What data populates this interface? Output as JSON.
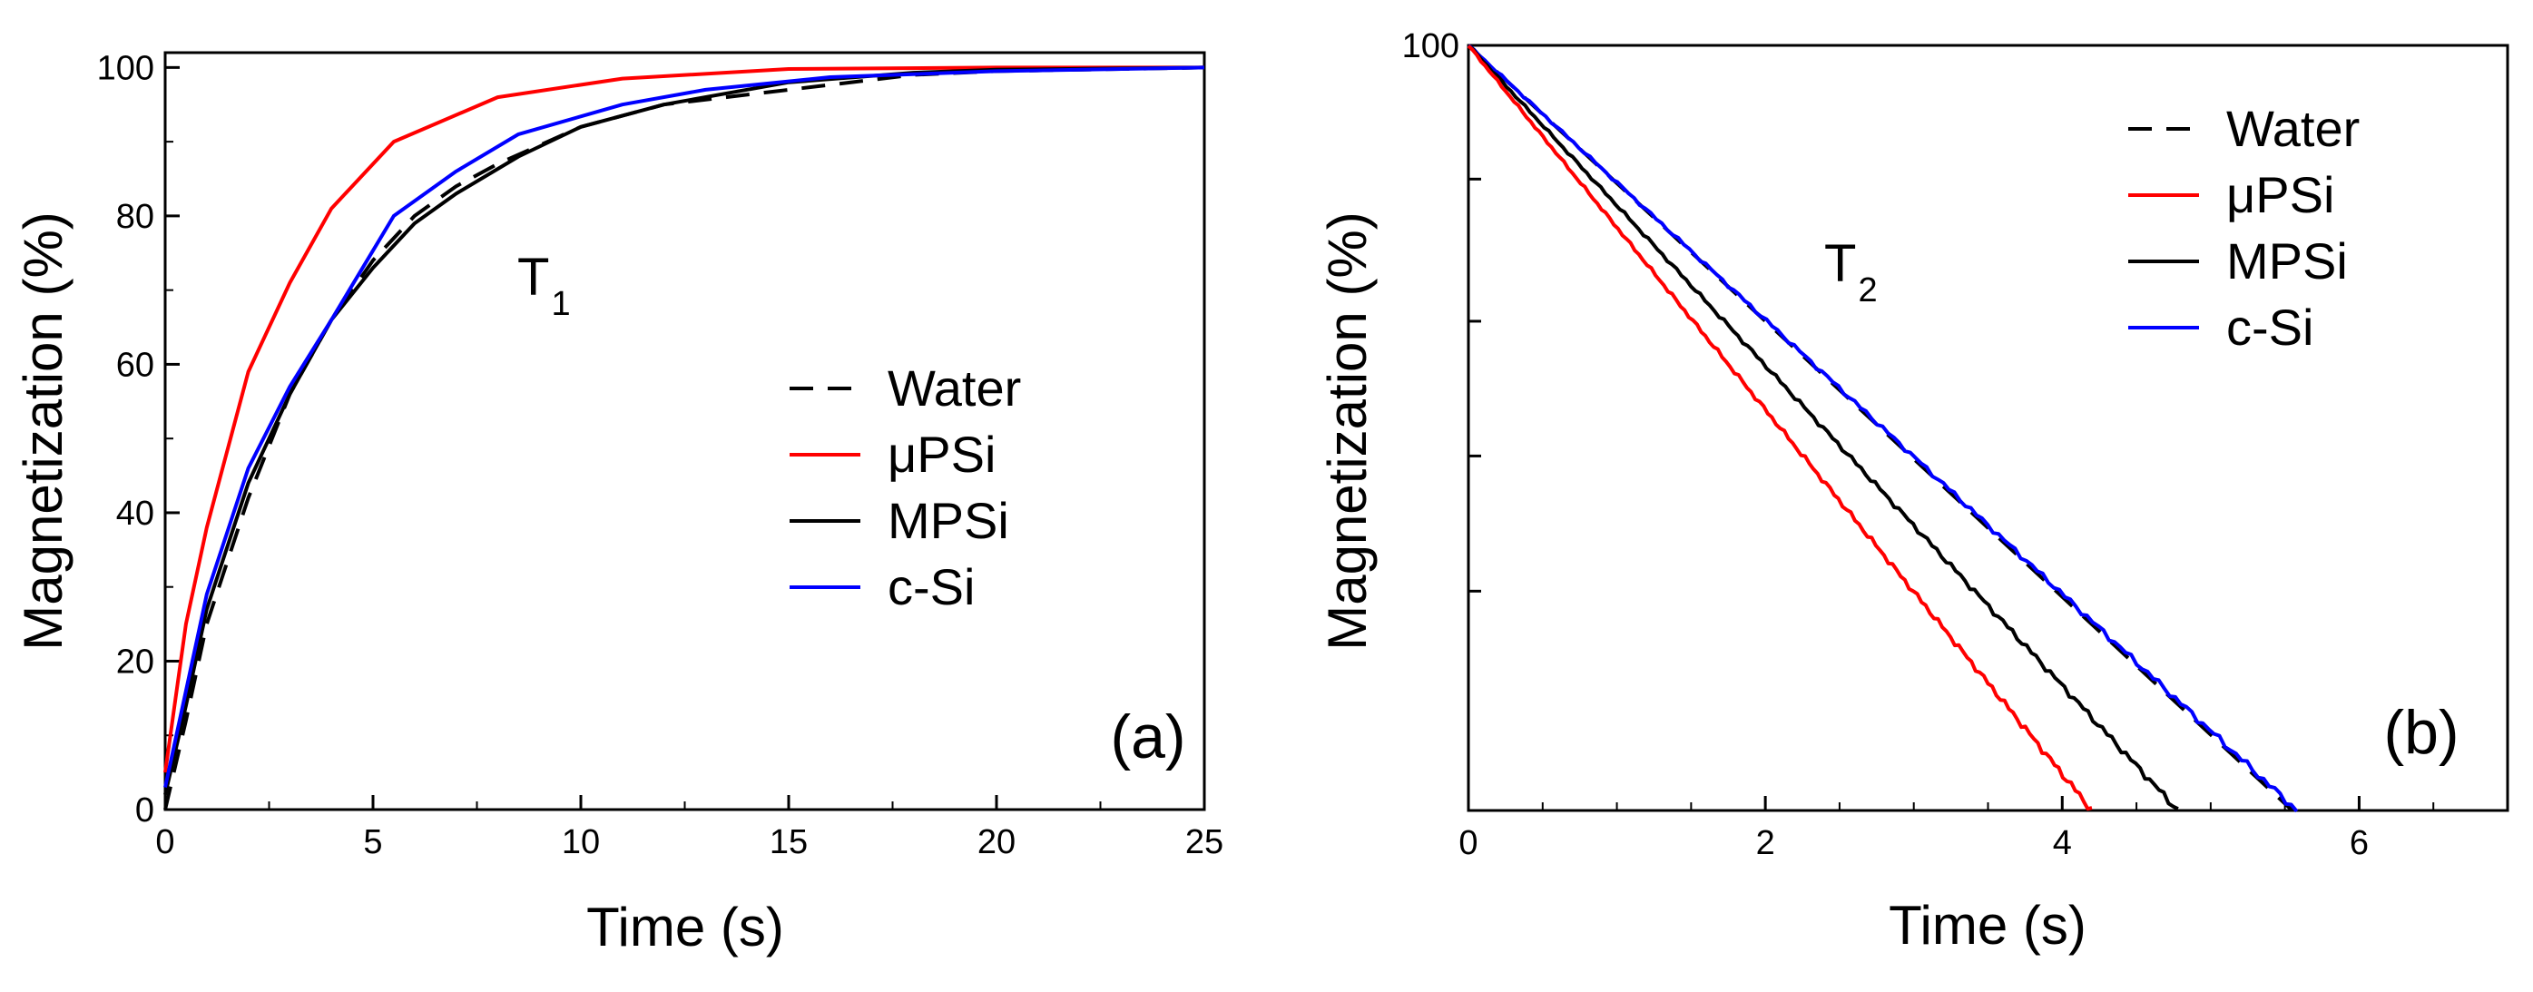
{
  "chart_data": [
    {
      "type": "line",
      "panel_label": "(a)",
      "annotation": {
        "main": "T",
        "sub": "1"
      },
      "xlabel": "Time (s)",
      "ylabel": "Magnetization (%)",
      "xlim": [
        0,
        25
      ],
      "ylim": [
        0,
        102
      ],
      "x_ticks": [
        0,
        5,
        10,
        15,
        20,
        25
      ],
      "y_ticks": [
        0,
        20,
        40,
        60,
        80,
        100
      ],
      "grid": false,
      "legend_position": "center-right",
      "series": [
        {
          "name": "Water",
          "color": "#000000",
          "dash": "dashed",
          "x": [
            0,
            0.5,
            1,
            2,
            3,
            4,
            5,
            6,
            7,
            8,
            10,
            12,
            15,
            18,
            20,
            25
          ],
          "y": [
            0,
            12,
            25,
            42,
            56,
            66,
            74,
            80,
            84,
            87,
            92,
            95,
            97,
            99,
            99.5,
            100
          ]
        },
        {
          "name": "μPSi",
          "color": "#ff0000",
          "dash": "solid",
          "x": [
            0,
            0.5,
            1,
            2,
            3,
            4,
            5.5,
            8,
            11,
            15,
            20,
            25
          ],
          "y": [
            5,
            25,
            38,
            59,
            71,
            81,
            90,
            96,
            98.5,
            99.8,
            100,
            100
          ]
        },
        {
          "name": "MPSi",
          "color": "#000000",
          "dash": "solid",
          "x": [
            0,
            0.5,
            1,
            2,
            3,
            4,
            5,
            6,
            7,
            8.5,
            10,
            12,
            15,
            18,
            20,
            25
          ],
          "y": [
            2,
            14,
            27,
            44,
            56,
            66,
            73,
            79,
            83,
            88,
            92,
            95,
            98,
            99.3,
            99.7,
            100
          ]
        },
        {
          "name": "c-Si",
          "color": "#0000ff",
          "dash": "solid",
          "x": [
            0,
            0.5,
            1,
            2,
            3,
            4,
            5.5,
            7,
            8.5,
            11,
            13,
            16,
            20,
            25
          ],
          "y": [
            3,
            16,
            29,
            46,
            57,
            66,
            80,
            86,
            91,
            95,
            97,
            98.7,
            99.5,
            100
          ]
        }
      ]
    },
    {
      "type": "line",
      "panel_label": "(b)",
      "annotation": {
        "main": "T",
        "sub": "2"
      },
      "xlabel": "Time (s)",
      "ylabel": "Magnetization (%)",
      "xlim": [
        0,
        7
      ],
      "y_scale": "log",
      "ylim": [
        1.5,
        100
      ],
      "x_ticks": [
        0,
        2,
        4,
        6
      ],
      "y_tick_labels": [
        {
          "value": 100,
          "label": "100"
        }
      ],
      "y_major_ticks": [
        100,
        48,
        22,
        10.5,
        5
      ],
      "grid": false,
      "legend_position": "top-right",
      "series": [
        {
          "name": "Water",
          "color": "#000000",
          "dash": "dashed",
          "x": [
            0,
            5.55
          ],
          "y": [
            100,
            1.5
          ]
        },
        {
          "name": "μPSi",
          "color": "#ff0000",
          "dash": "solid",
          "x": [
            0,
            4.2
          ],
          "y": [
            100,
            1.5
          ]
        },
        {
          "name": "MPSi",
          "color": "#000000",
          "dash": "solid",
          "x": [
            0,
            4.78
          ],
          "y": [
            100,
            1.5
          ]
        },
        {
          "name": "c-Si",
          "color": "#0000ff",
          "dash": "solid",
          "x": [
            0,
            5.58
          ],
          "y": [
            100,
            1.5
          ]
        }
      ]
    }
  ]
}
